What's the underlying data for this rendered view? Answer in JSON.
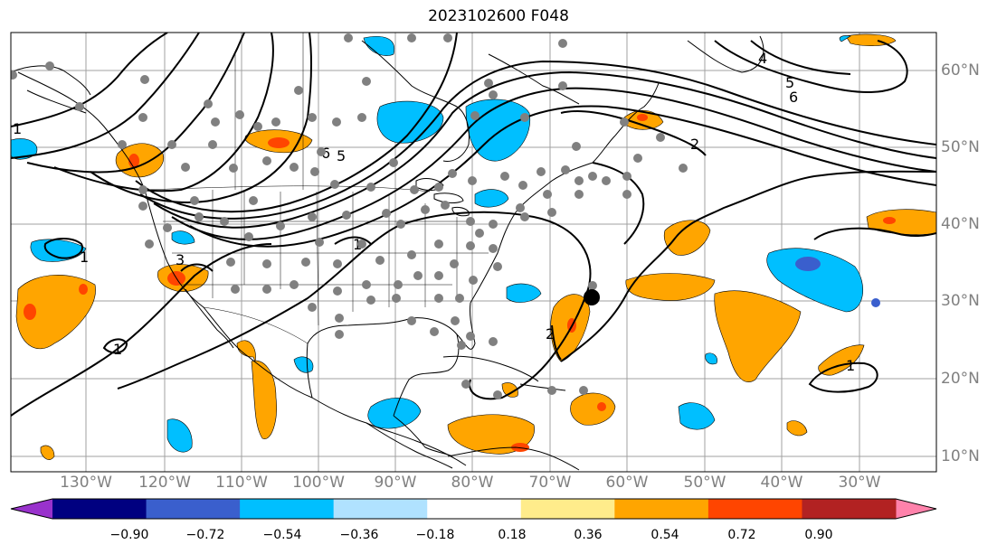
{
  "title": "2023102600 F048",
  "lon_labels": [
    "130°W",
    "120°W",
    "110°W",
    "100°W",
    "90°W",
    "80°W",
    "70°W",
    "60°W",
    "50°W",
    "40°W",
    "30°W"
  ],
  "lat_labels": [
    "60°N",
    "50°N",
    "40°N",
    "30°N",
    "20°N",
    "10°N"
  ],
  "colorbar": {
    "ticks": [
      "−0.90",
      "−0.72",
      "−0.54",
      "−0.36",
      "−0.18",
      "0.18",
      "0.36",
      "0.54",
      "0.72",
      "0.90"
    ],
    "colors": [
      "#9932cc",
      "#000080",
      "#3a5fcd",
      "#00bfff",
      "#b0e2ff",
      "#ffffff",
      "#ffec8b",
      "#ffa500",
      "#ff4500",
      "#b22222",
      "#ff82ab"
    ]
  },
  "contour_labels": [
    "1",
    "1",
    "1",
    "1",
    "1",
    "2",
    "2",
    "3",
    "4",
    "5",
    "5",
    "6",
    "6",
    "1"
  ],
  "fill_colors": {
    "orange": "#ffa500",
    "red": "#ff4500",
    "lightblue": "#00bfff",
    "blue": "#3a5fcd",
    "land_line": "#000000",
    "station": "#808080",
    "storm": "#000000"
  }
}
